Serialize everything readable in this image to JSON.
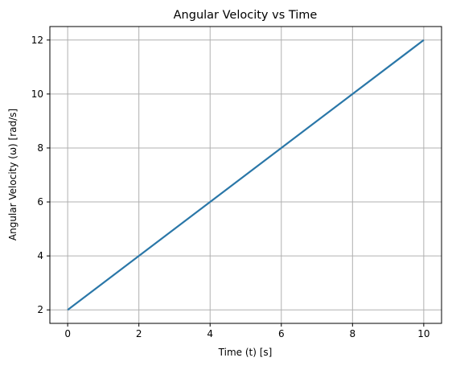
{
  "chart_data": {
    "type": "line",
    "title": "Angular Velocity vs Time",
    "xlabel": "Time (t) [s]",
    "ylabel": "Angular Velocity (ω) [rad/s]",
    "xlim": [
      -0.5,
      10.5
    ],
    "ylim": [
      1.5,
      12.5
    ],
    "xticks": [
      0,
      2,
      4,
      6,
      8,
      10
    ],
    "yticks": [
      2,
      4,
      6,
      8,
      10,
      12
    ],
    "grid": true,
    "series": [
      {
        "color": "#2a77a8",
        "x": [
          0,
          10
        ],
        "y": [
          2,
          12
        ]
      }
    ]
  }
}
